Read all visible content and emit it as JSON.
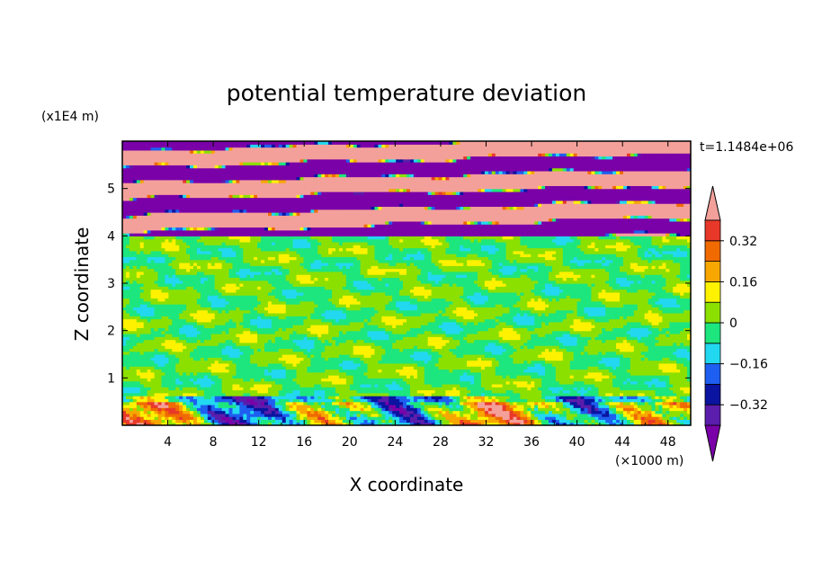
{
  "chart_data": {
    "type": "heatmap",
    "title": "potential temperature deviation",
    "xlabel": "X coordinate",
    "ylabel": "Z coordinate",
    "x_unit": "(×1000 m)",
    "y_unit": "(x1E4 m)",
    "time_label": "t=1.1484e+06",
    "xlim": [
      0,
      50
    ],
    "ylim": [
      0,
      6
    ],
    "x_ticks": [
      "4",
      "8",
      "12",
      "16",
      "20",
      "24",
      "28",
      "32",
      "36",
      "40",
      "44",
      "48"
    ],
    "x_tick_values": [
      4,
      8,
      12,
      16,
      20,
      24,
      28,
      32,
      36,
      40,
      44,
      48
    ],
    "y_ticks": [
      "1",
      "2",
      "3",
      "4",
      "5"
    ],
    "y_tick_values": [
      1,
      2,
      3,
      4,
      5
    ],
    "colorbar": {
      "levels": [
        -0.48,
        -0.4,
        -0.32,
        -0.24,
        -0.16,
        -0.08,
        0,
        0.08,
        0.16,
        0.24,
        0.32,
        0.4
      ],
      "labels": [
        "0.32",
        "0.16",
        "0",
        "−0.16",
        "−0.32"
      ],
      "label_values": [
        0.32,
        0.16,
        0,
        -0.16,
        -0.32
      ],
      "colors": [
        "#7a00a8",
        "#5b1dab",
        "#0a14a0",
        "#1e5ef0",
        "#22d8f0",
        "#1de67e",
        "#8ce000",
        "#fff200",
        "#f7a700",
        "#f06a00",
        "#e8382a",
        "#f4a09a"
      ]
    },
    "regions": [
      {
        "name": "upper layer",
        "z_range": [
          4.0,
          6.0
        ],
        "pattern": "alternating bands",
        "values": [
          -0.48,
          0.4
        ]
      },
      {
        "name": "middle layer",
        "z_range": [
          0.6,
          4.0
        ],
        "values": [
          -0.08,
          0.08
        ]
      },
      {
        "name": "lower layer",
        "z_range": [
          0.0,
          0.6
        ],
        "values": [
          -0.4,
          0.4
        ]
      }
    ]
  }
}
